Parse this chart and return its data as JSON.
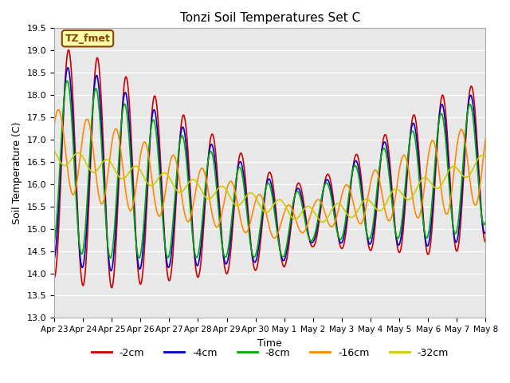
{
  "title": "Tonzi Soil Temperatures Set C",
  "xlabel": "Time",
  "ylabel": "Soil Temperature (C)",
  "ylim": [
    13.0,
    19.5
  ],
  "yticks": [
    13.0,
    13.5,
    14.0,
    14.5,
    15.0,
    15.5,
    16.0,
    16.5,
    17.0,
    17.5,
    18.0,
    18.5,
    19.0,
    19.5
  ],
  "xtick_labels": [
    "Apr 23",
    "Apr 24",
    "Apr 25",
    "Apr 26",
    "Apr 27",
    "Apr 28",
    "Apr 29",
    "Apr 30",
    "May 1",
    "May 2",
    "May 3",
    "May 4",
    "May 5",
    "May 6",
    "May 7",
    "May 8"
  ],
  "series_colors": [
    "#cc0000",
    "#0000cc",
    "#00aa00",
    "#ff8800",
    "#cccc00"
  ],
  "series_labels": [
    "-2cm",
    "-4cm",
    "-8cm",
    "-16cm",
    "-32cm"
  ],
  "annotation_text": "TZ_fmet",
  "annotation_bg": "#ffffaa",
  "annotation_border": "#884400",
  "plot_bg": "#e8e8e8",
  "fig_bg": "#ffffff",
  "linewidth": 1.2
}
